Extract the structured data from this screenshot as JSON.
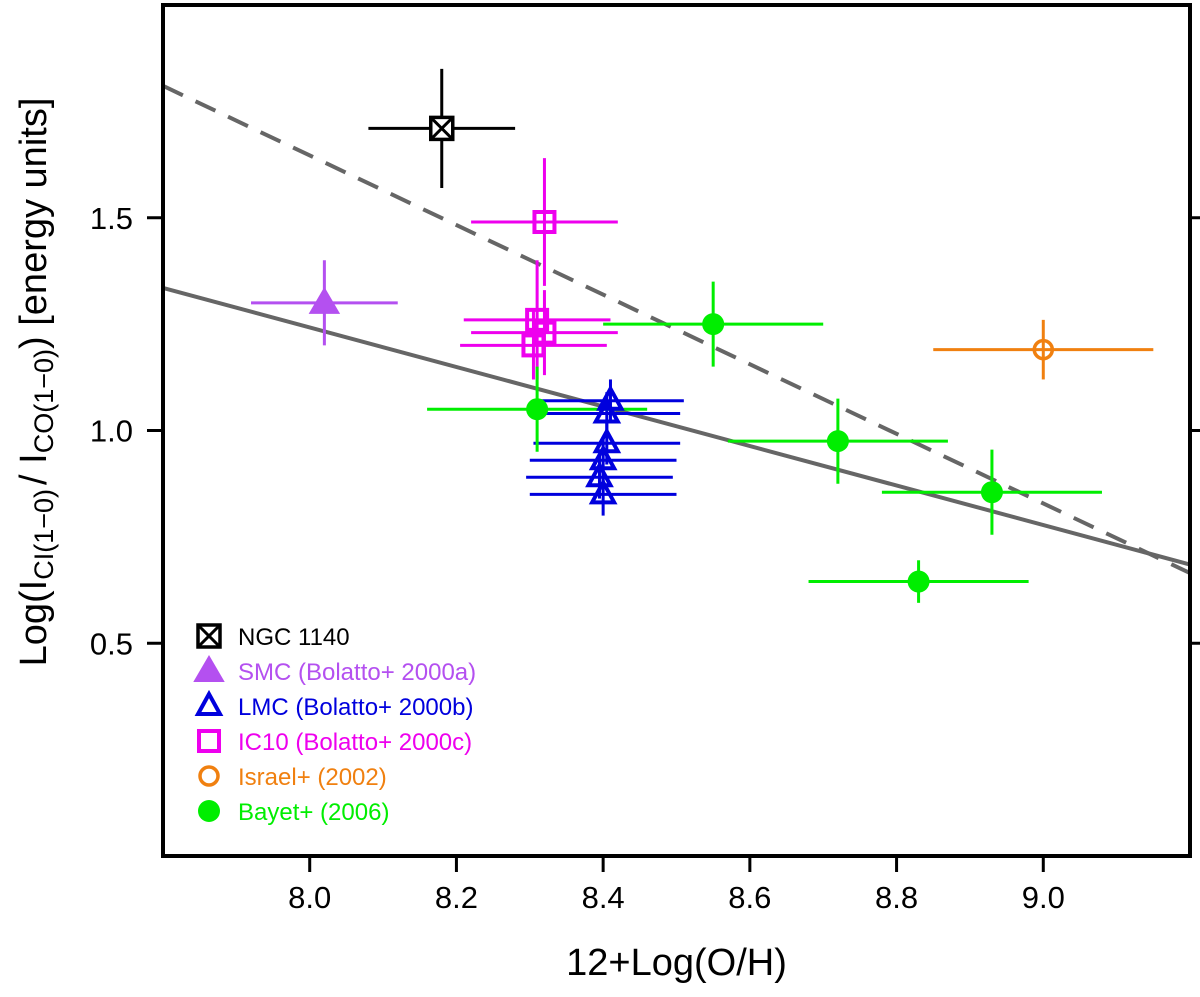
{
  "chart_data": {
    "type": "scatter",
    "title": "",
    "xlabel": "12+Log(O/H)",
    "ylabel": {
      "prefix": "Log(I",
      "sub1": "CI(1−0)",
      "middle": "/ I",
      "sub2": "CO(1−0)",
      "suffix": ") [energy units]"
    },
    "xlim": [
      7.8,
      9.2
    ],
    "ylim": [
      0.0,
      2.0
    ],
    "xticks": [
      8.0,
      8.2,
      8.4,
      8.6,
      8.8,
      9.0
    ],
    "xtick_labels": [
      "8.0",
      "8.2",
      "8.4",
      "8.6",
      "8.8",
      "9.0"
    ],
    "yticks": [
      0.5,
      1.0,
      1.5
    ],
    "ytick_labels": [
      "0.5",
      "1.0",
      "1.5"
    ],
    "grid": false,
    "legend_position": "bottom-left",
    "series": [
      {
        "name": "NGC 1140",
        "marker": "boxcross",
        "color": "#000000",
        "points": [
          {
            "x": 8.18,
            "y": 1.71,
            "xerr": 0.1,
            "yerr": 0.14
          }
        ]
      },
      {
        "name": "SMC (Bolatto+ 2000a)",
        "marker": "triangle-filled",
        "color": "#b450f0",
        "points": [
          {
            "x": 8.02,
            "y": 1.3,
            "xerr": 0.1,
            "yerr": 0.1
          }
        ]
      },
      {
        "name": "LMC (Bolatto+ 2000b)",
        "marker": "triangle-open",
        "color": "#0000dd",
        "points": [
          {
            "x": 8.41,
            "y": 1.07,
            "xerr": 0.1,
            "yerr": 0.05
          },
          {
            "x": 8.405,
            "y": 1.04,
            "xerr": 0.1,
            "yerr": 0.05
          },
          {
            "x": 8.405,
            "y": 0.97,
            "xerr": 0.1,
            "yerr": 0.05
          },
          {
            "x": 8.4,
            "y": 0.93,
            "xerr": 0.1,
            "yerr": 0.05
          },
          {
            "x": 8.395,
            "y": 0.89,
            "xerr": 0.1,
            "yerr": 0.05
          },
          {
            "x": 8.4,
            "y": 0.85,
            "xerr": 0.1,
            "yerr": 0.05
          }
        ]
      },
      {
        "name": "IC10 (Bolatto+ 2000c)",
        "marker": "square-open",
        "color": "#ee00ee",
        "points": [
          {
            "x": 8.32,
            "y": 1.49,
            "xerr": 0.1,
            "yerr": 0.15
          },
          {
            "x": 8.31,
            "y": 1.26,
            "xerr": 0.1,
            "yerr": 0.14
          },
          {
            "x": 8.32,
            "y": 1.23,
            "xerr": 0.1,
            "yerr": 0.1
          },
          {
            "x": 8.305,
            "y": 1.2,
            "xerr": 0.1,
            "yerr": 0.08
          }
        ]
      },
      {
        "name": "Israel+ (2002)",
        "marker": "circle-open",
        "color": "#f08010",
        "points": [
          {
            "x": 9.0,
            "y": 1.19,
            "xerr": 0.15,
            "yerr": 0.07
          }
        ]
      },
      {
        "name": "Bayet+ (2006)",
        "marker": "circle-filled",
        "color": "#00ee00",
        "points": [
          {
            "x": 8.55,
            "y": 1.25,
            "xerr": 0.15,
            "yerr": 0.1
          },
          {
            "x": 8.31,
            "y": 1.05,
            "xerr": 0.15,
            "yerr": 0.1
          },
          {
            "x": 8.72,
            "y": 0.975,
            "xerr": 0.15,
            "yerr": 0.1
          },
          {
            "x": 8.93,
            "y": 0.855,
            "xerr": 0.15,
            "yerr": 0.1
          },
          {
            "x": 8.83,
            "y": 0.645,
            "xerr": 0.15,
            "yerr": 0.05
          }
        ]
      }
    ],
    "fit_lines": [
      {
        "style": "solid",
        "color": "#666666",
        "x": [
          7.8,
          9.2
        ],
        "y": [
          1.335,
          0.685
        ]
      },
      {
        "style": "dashed",
        "color": "#666666",
        "x": [
          7.8,
          9.2
        ],
        "y": [
          1.81,
          0.665
        ]
      }
    ]
  }
}
